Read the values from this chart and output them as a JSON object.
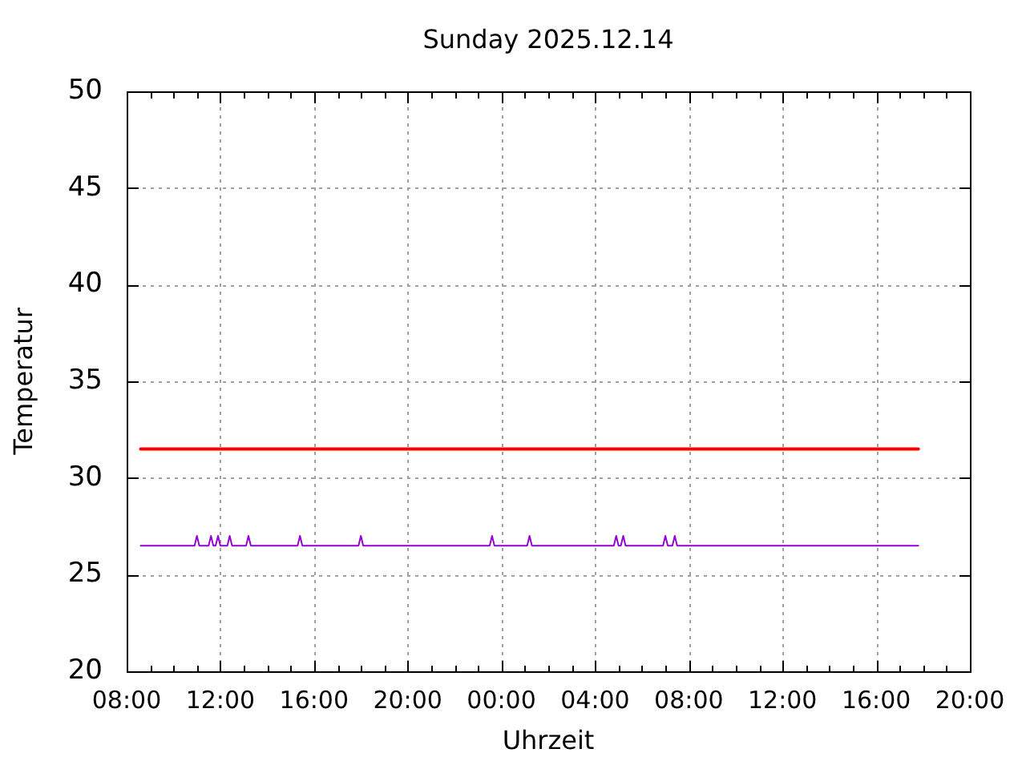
{
  "chart_data": {
    "type": "line",
    "title": "Sunday 2025.12.14",
    "xlabel": "Uhrzeit",
    "ylabel": "Temperatur",
    "xlim": [
      "2025-12-13T08:00",
      "2025-12-14T20:00"
    ],
    "xticks": [
      {
        "value": "2025-12-13T08:00",
        "label": "08:00"
      },
      {
        "value": "2025-12-13T09:00",
        "label": null
      },
      {
        "value": "2025-12-13T10:00",
        "label": null
      },
      {
        "value": "2025-12-13T11:00",
        "label": null
      },
      {
        "value": "2025-12-13T12:00",
        "label": "12:00"
      },
      {
        "value": "2025-12-13T13:00",
        "label": null
      },
      {
        "value": "2025-12-13T14:00",
        "label": null
      },
      {
        "value": "2025-12-13T15:00",
        "label": null
      },
      {
        "value": "2025-12-13T16:00",
        "label": "16:00"
      },
      {
        "value": "2025-12-13T17:00",
        "label": null
      },
      {
        "value": "2025-12-13T18:00",
        "label": null
      },
      {
        "value": "2025-12-13T19:00",
        "label": null
      },
      {
        "value": "2025-12-13T20:00",
        "label": "20:00"
      },
      {
        "value": "2025-12-13T21:00",
        "label": null
      },
      {
        "value": "2025-12-13T22:00",
        "label": null
      },
      {
        "value": "2025-12-13T23:00",
        "label": null
      },
      {
        "value": "2025-12-14T00:00",
        "label": "00:00"
      },
      {
        "value": "2025-12-14T01:00",
        "label": null
      },
      {
        "value": "2025-12-14T02:00",
        "label": null
      },
      {
        "value": "2025-12-14T03:00",
        "label": null
      },
      {
        "value": "2025-12-14T04:00",
        "label": "04:00"
      },
      {
        "value": "2025-12-14T05:00",
        "label": null
      },
      {
        "value": "2025-12-14T06:00",
        "label": null
      },
      {
        "value": "2025-12-14T07:00",
        "label": null
      },
      {
        "value": "2025-12-14T08:00",
        "label": "08:00"
      },
      {
        "value": "2025-12-14T09:00",
        "label": null
      },
      {
        "value": "2025-12-14T10:00",
        "label": null
      },
      {
        "value": "2025-12-14T11:00",
        "label": null
      },
      {
        "value": "2025-12-14T12:00",
        "label": "12:00"
      },
      {
        "value": "2025-12-14T13:00",
        "label": null
      },
      {
        "value": "2025-12-14T14:00",
        "label": null
      },
      {
        "value": "2025-12-14T15:00",
        "label": null
      },
      {
        "value": "2025-12-14T16:00",
        "label": "16:00"
      },
      {
        "value": "2025-12-14T17:00",
        "label": null
      },
      {
        "value": "2025-12-14T18:00",
        "label": null
      },
      {
        "value": "2025-12-14T19:00",
        "label": null
      },
      {
        "value": "2025-12-14T20:00",
        "label": "20:00"
      }
    ],
    "ylim": [
      20,
      50
    ],
    "yticks": [
      20,
      25,
      30,
      35,
      40,
      45,
      50
    ],
    "grid": true,
    "series": [
      {
        "color": "#ff0000",
        "x": [
          "2025-12-13T08:36",
          "2025-12-14T17:48"
        ],
        "values": [
          31.5,
          31.5
        ]
      },
      {
        "color": "#9400d3",
        "x": [
          "2025-12-13T08:36",
          "2025-12-13T10:54",
          "2025-12-13T11:00",
          "2025-12-13T11:06",
          "2025-12-13T11:30",
          "2025-12-13T11:36",
          "2025-12-13T11:42",
          "2025-12-13T11:48",
          "2025-12-13T11:54",
          "2025-12-13T12:00",
          "2025-12-13T12:18",
          "2025-12-13T12:24",
          "2025-12-13T12:30",
          "2025-12-13T13:06",
          "2025-12-13T13:12",
          "2025-12-13T13:18",
          "2025-12-13T15:18",
          "2025-12-13T15:24",
          "2025-12-13T15:30",
          "2025-12-13T17:54",
          "2025-12-13T18:00",
          "2025-12-13T18:06",
          "2025-12-13T23:30",
          "2025-12-13T23:36",
          "2025-12-13T23:42",
          "2025-12-14T01:06",
          "2025-12-14T01:12",
          "2025-12-14T01:18",
          "2025-12-14T04:48",
          "2025-12-14T04:54",
          "2025-12-14T05:00",
          "2025-12-14T05:06",
          "2025-12-14T05:12",
          "2025-12-14T05:18",
          "2025-12-14T06:54",
          "2025-12-14T07:00",
          "2025-12-14T07:06",
          "2025-12-14T07:18",
          "2025-12-14T07:24",
          "2025-12-14T07:30",
          "2025-12-14T17:48"
        ],
        "values": [
          26.5,
          26.5,
          27.0,
          26.5,
          26.5,
          27.0,
          26.5,
          26.5,
          27.0,
          26.5,
          26.5,
          27.0,
          26.5,
          26.5,
          27.0,
          26.5,
          26.5,
          27.0,
          26.5,
          26.5,
          27.0,
          26.5,
          26.5,
          27.0,
          26.5,
          26.5,
          27.0,
          26.5,
          26.5,
          27.0,
          26.5,
          26.5,
          27.0,
          26.5,
          26.5,
          27.0,
          26.5,
          26.5,
          27.0,
          26.5,
          26.5
        ]
      }
    ]
  }
}
